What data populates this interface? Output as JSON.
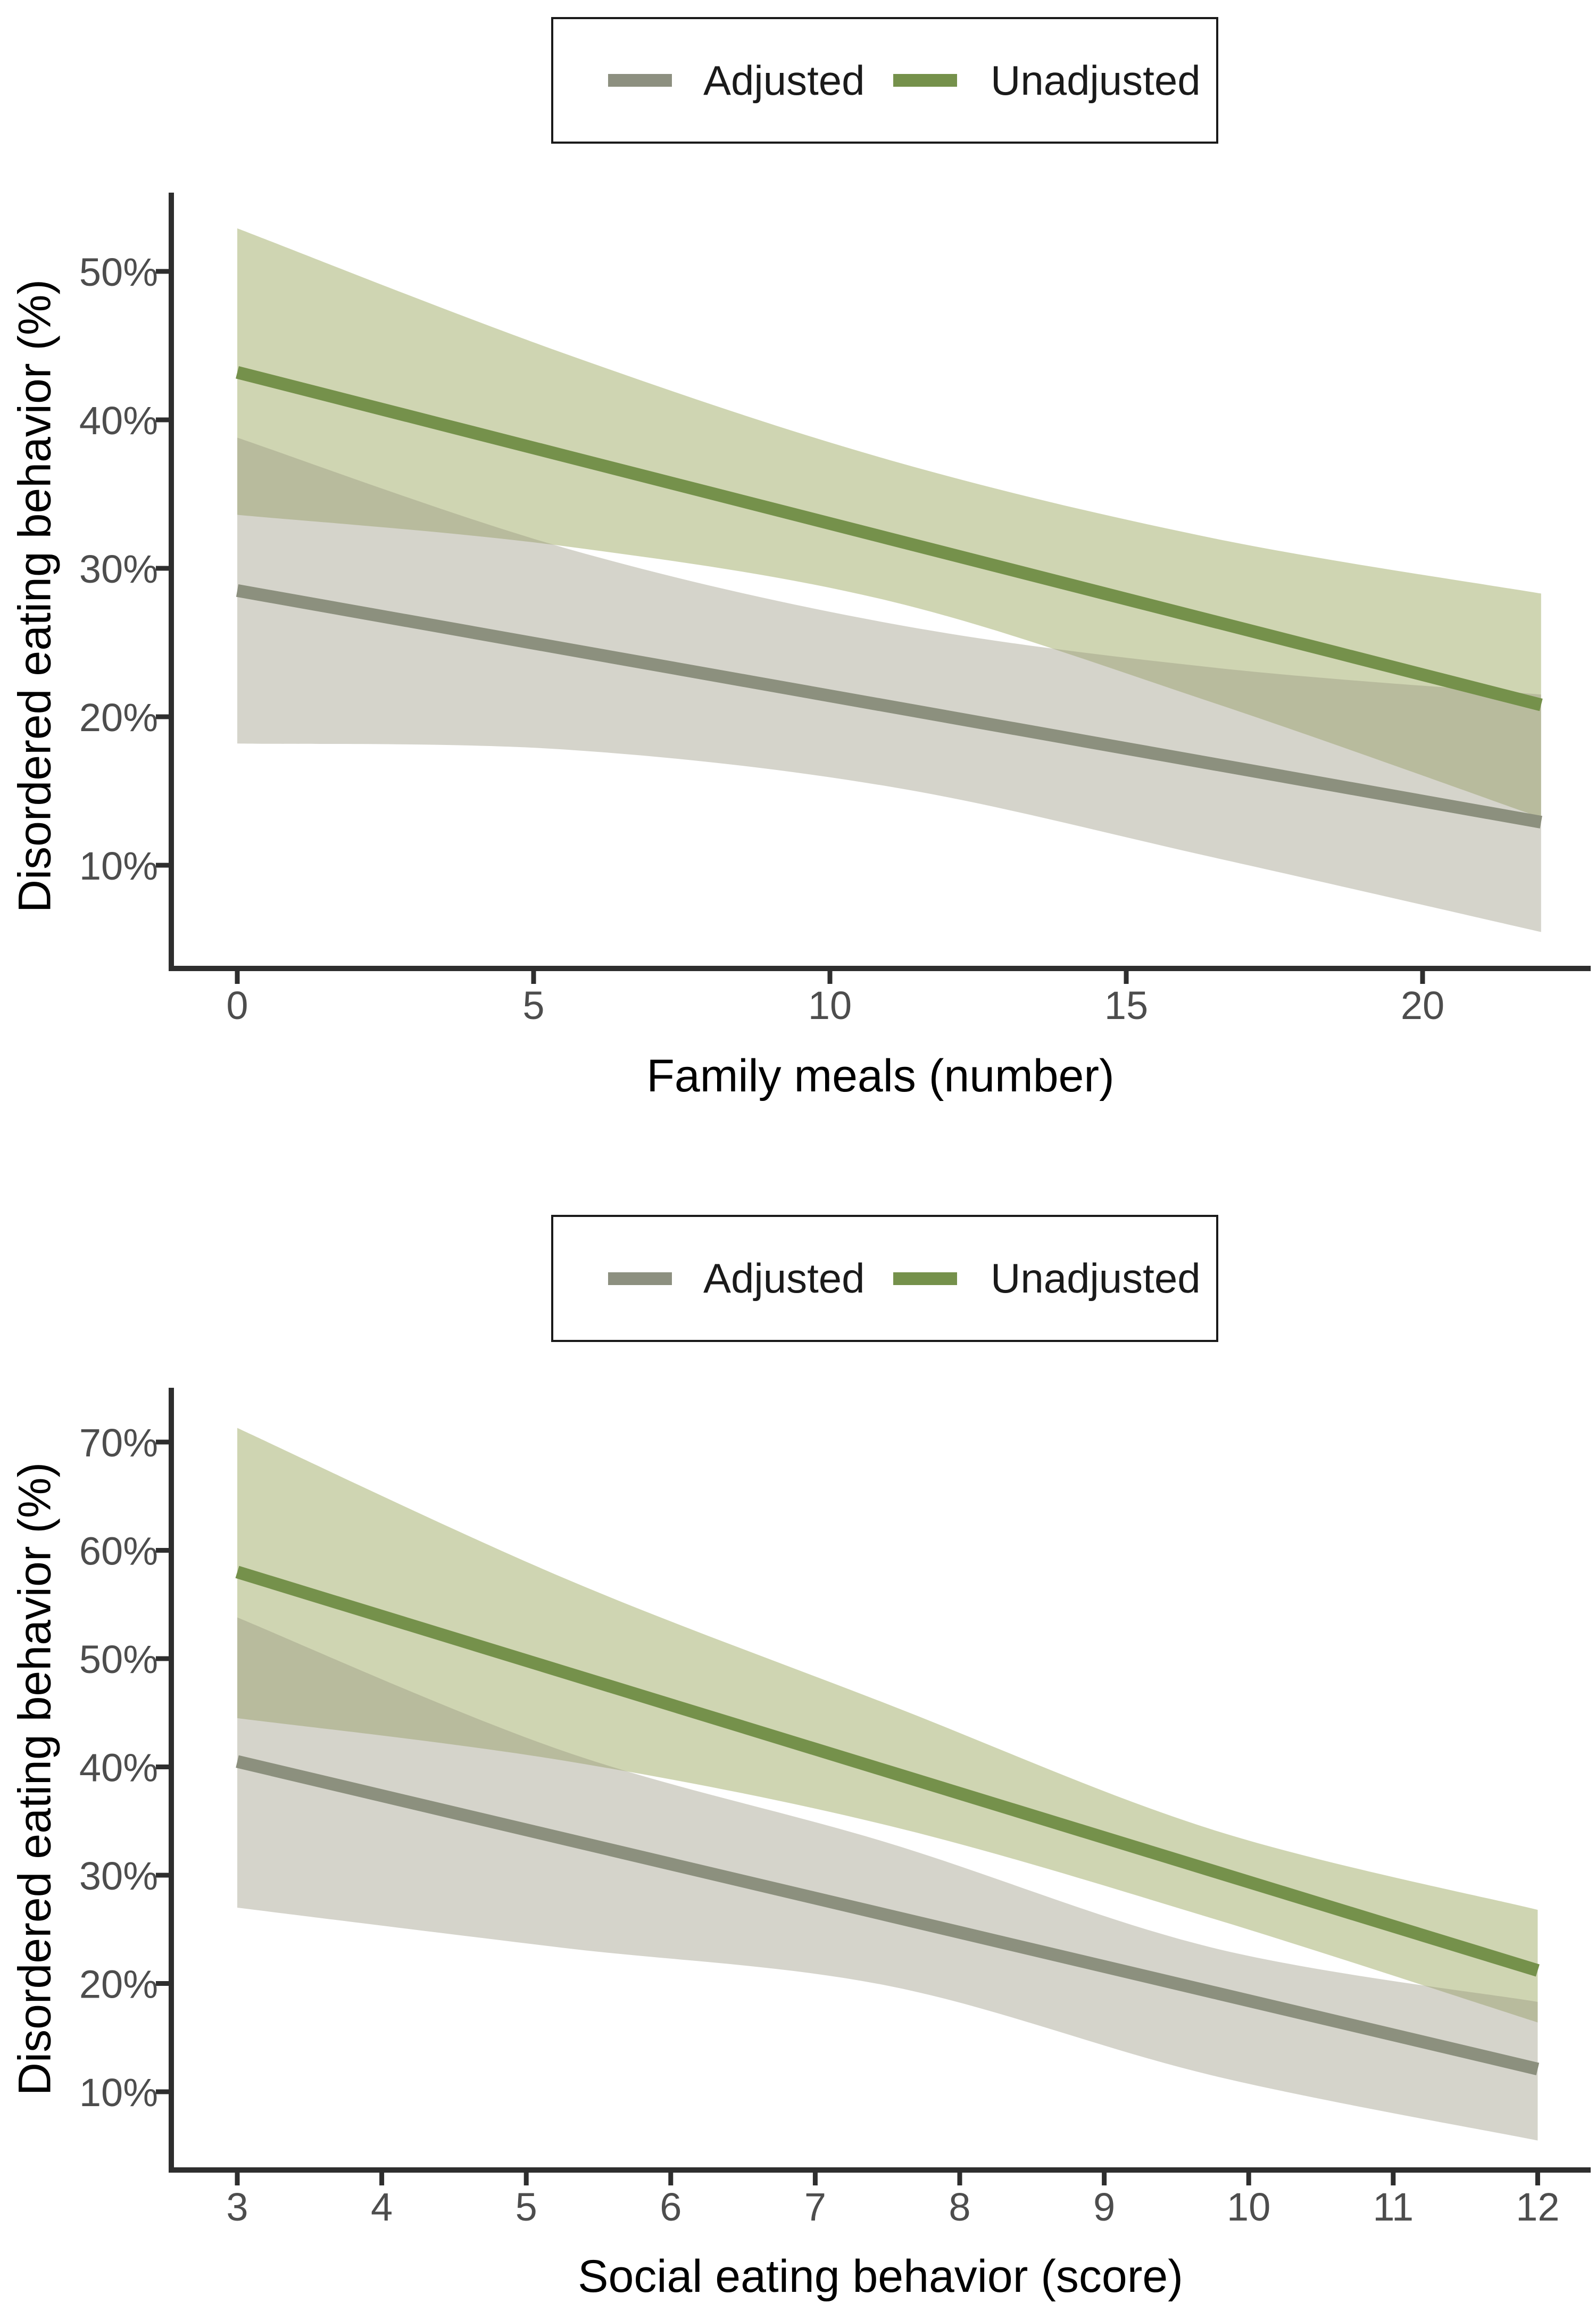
{
  "page": {
    "background": "#ffffff",
    "axis_color": "#2e2e2e",
    "tick_label_color": "#4d4d4d",
    "title_color": "#000000"
  },
  "legend": {
    "border_color": "#1a1a1a",
    "items": [
      {
        "label": "Adjusted",
        "color": "#8d9080"
      },
      {
        "label": "Unadjusted",
        "color": "#75914b"
      }
    ]
  },
  "chart_data": [
    {
      "type": "line",
      "title": "",
      "xlabel": "Family meals (number)",
      "ylabel": "Disordered eating behavior (%)",
      "xlim": [
        -1.1,
        23.1
      ],
      "ylim": [
        3.1,
        55.3
      ],
      "grid": "off",
      "legend_position": "top",
      "x_ticks": [
        0,
        5,
        10,
        15,
        20
      ],
      "x_tick_labels": [
        "0",
        "5",
        "10",
        "15",
        "20"
      ],
      "y_ticks": [
        10,
        20,
        30,
        40,
        50
      ],
      "y_tick_labels": [
        "10%",
        "20%",
        "30%",
        "40%",
        "50%"
      ],
      "x": [
        0,
        5.5,
        11,
        16.5,
        22
      ],
      "series": [
        {
          "name": "Adjusted",
          "color": "#8c907e",
          "ribbon_color": "#96947d",
          "ribbon_opacity": 0.4,
          "values": [
            28.5,
            24.6,
            20.7,
            16.8,
            12.9
          ],
          "upper": [
            38.8,
            31.4,
            26.3,
            23.3,
            21.5
          ],
          "lower": [
            18.2,
            17.8,
            15.3,
            10.5,
            5.5
          ]
        },
        {
          "name": "Unadjusted",
          "color": "#75914b",
          "ribbon_color": "#87963f",
          "ribbon_opacity": 0.4,
          "values": [
            43.2,
            37.6,
            32.0,
            26.4,
            20.8
          ],
          "upper": [
            52.9,
            44.5,
            37.3,
            32.0,
            28.3
          ],
          "lower": [
            33.6,
            31.5,
            27.8,
            20.9,
            13.2
          ]
        }
      ]
    },
    {
      "type": "line",
      "title": "",
      "xlabel": "Social eating behavior (score)",
      "ylabel": "Disordered eating behavior (%)",
      "xlim": [
        2.55,
        12.45
      ],
      "ylim": [
        2.8,
        75.0
      ],
      "grid": "off",
      "legend_position": "top",
      "x_ticks": [
        3,
        4,
        5,
        6,
        7,
        8,
        9,
        10,
        11,
        12
      ],
      "x_tick_labels": [
        "3",
        "4",
        "5",
        "6",
        "7",
        "8",
        "9",
        "10",
        "11",
        "12"
      ],
      "y_ticks": [
        10,
        20,
        30,
        40,
        50,
        60,
        70
      ],
      "y_tick_labels": [
        "10%",
        "20%",
        "30%",
        "40%",
        "50%",
        "60%",
        "70%"
      ],
      "x": [
        3,
        5.25,
        7.5,
        9.75,
        12
      ],
      "series": [
        {
          "name": "Adjusted",
          "color": "#8c907e",
          "ribbon_color": "#96947d",
          "ribbon_opacity": 0.4,
          "values": [
            40.5,
            33.4,
            26.3,
            19.2,
            12.1
          ],
          "upper": [
            53.8,
            41.5,
            33.0,
            23.3,
            18.3
          ],
          "lower": [
            27.0,
            23.3,
            19.8,
            11.5,
            5.5
          ]
        },
        {
          "name": "Unadjusted",
          "color": "#75914b",
          "ribbon_color": "#87963f",
          "ribbon_opacity": 0.4,
          "values": [
            58.0,
            48.8,
            39.6,
            30.4,
            21.2
          ],
          "upper": [
            71.3,
            57.5,
            45.8,
            34.2,
            26.8
          ],
          "lower": [
            44.5,
            40.6,
            34.6,
            26.0,
            16.4
          ]
        }
      ]
    }
  ]
}
